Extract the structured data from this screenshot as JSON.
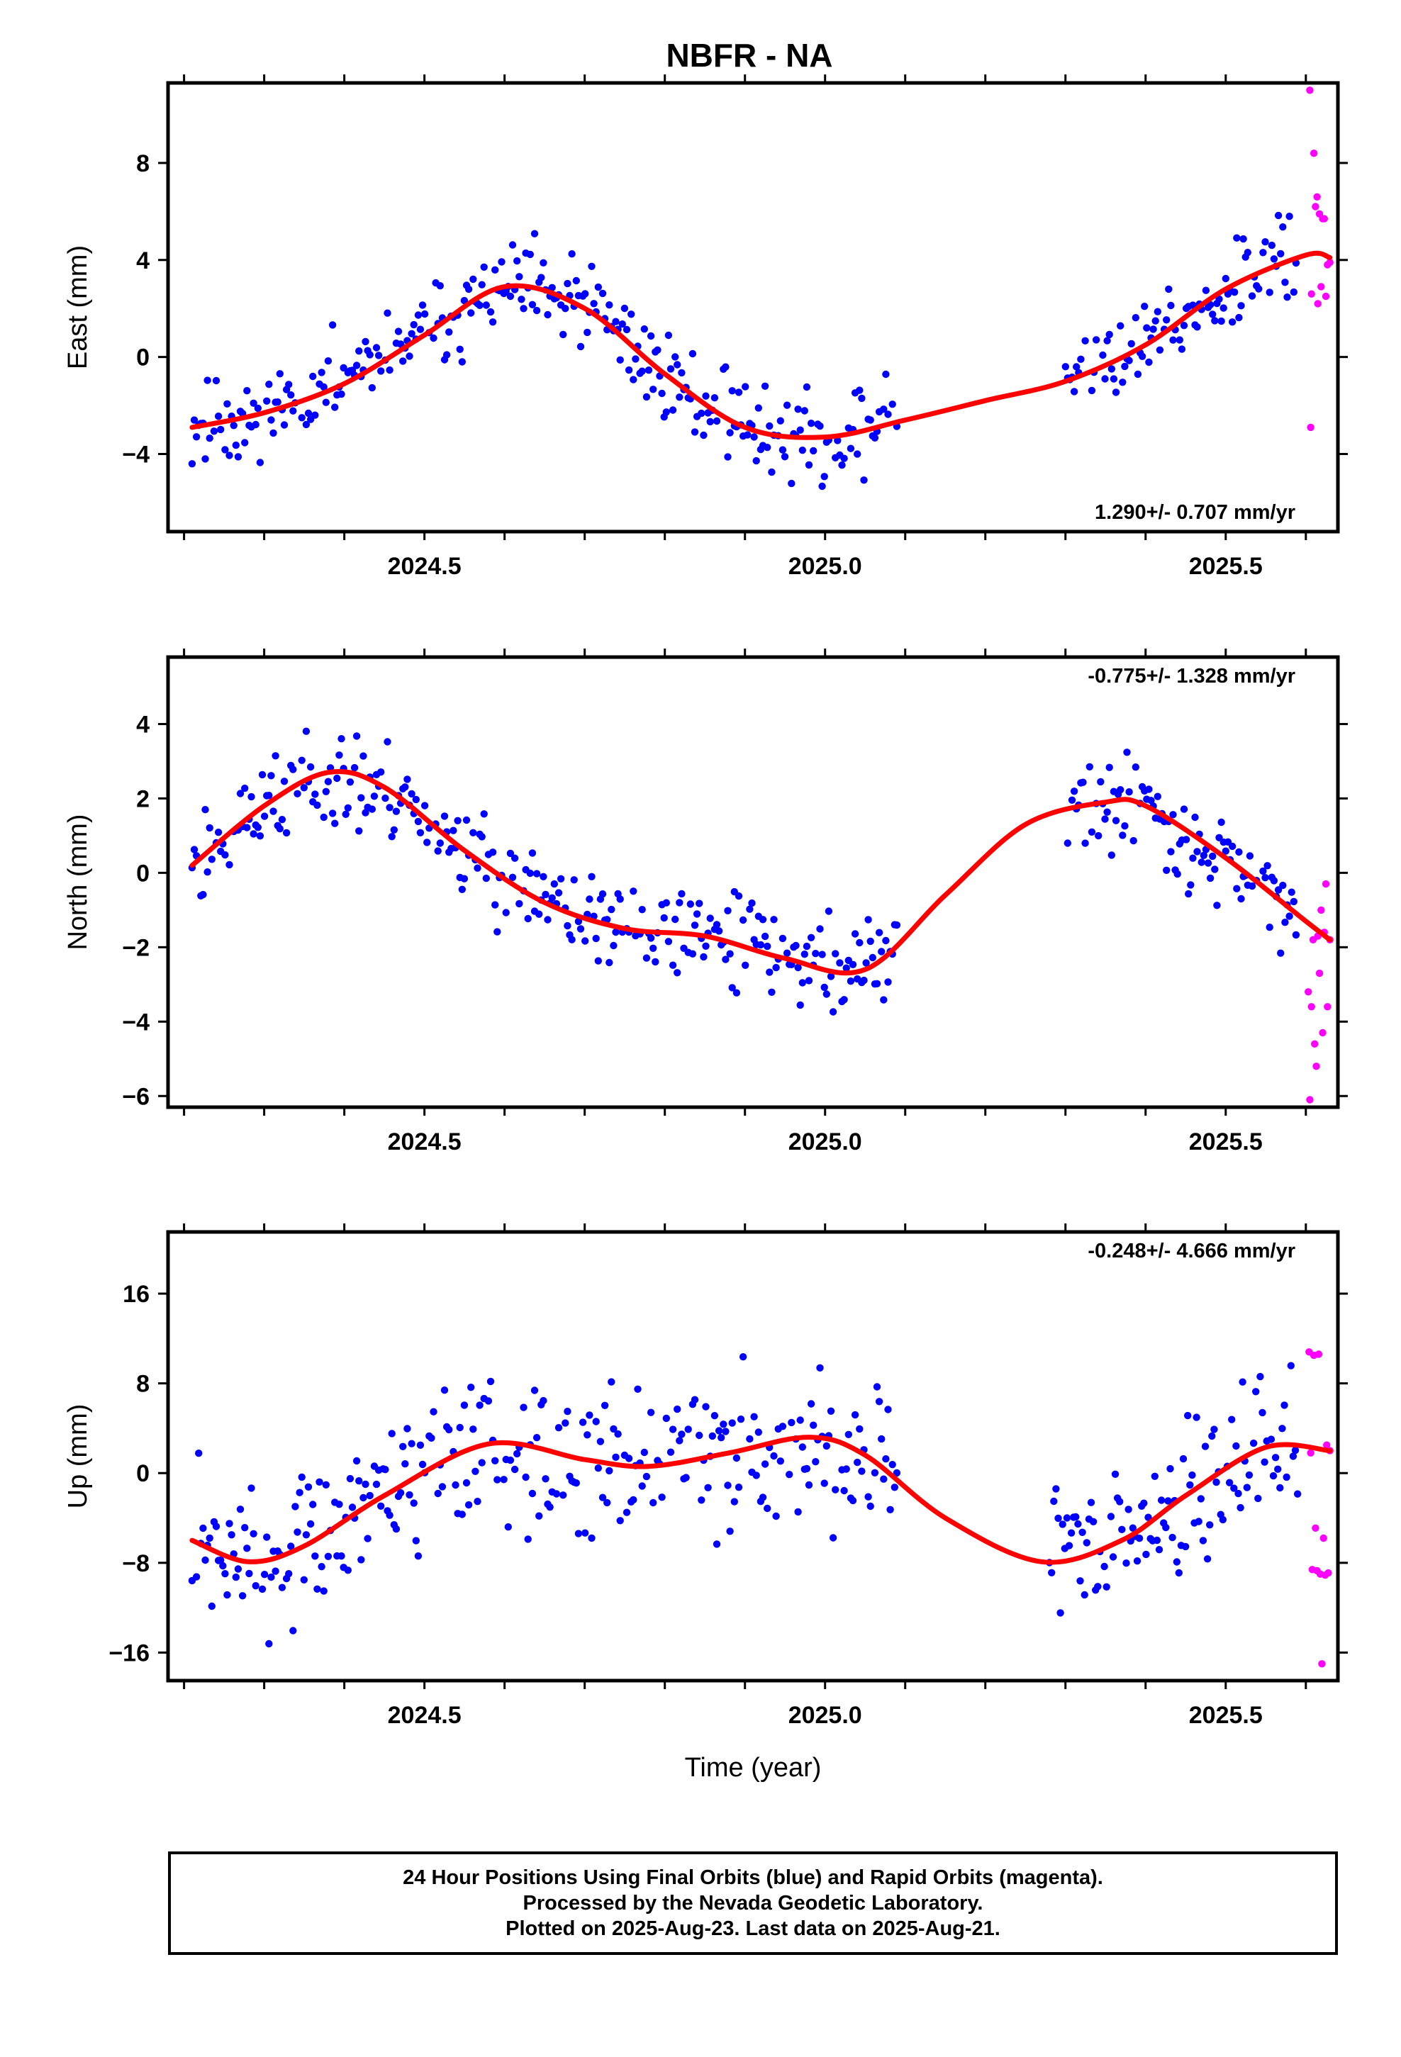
{
  "title": "NBFR - NA",
  "caption": {
    "line1": "24 Hour Positions Using Final Orbits (blue) and Rapid Orbits (magenta).",
    "line2": "Processed by the Nevada Geodetic Laboratory.",
    "line3": "Plotted on 2025-Aug-23. Last data on 2025-Aug-21."
  },
  "colors": {
    "final": "#0000ff",
    "rapid": "#ff00ff",
    "model": "#ff0000"
  },
  "chart_data": [
    {
      "type": "scatter",
      "component": "east",
      "ylabel": "East (mm)",
      "xlabel": "",
      "xlim": [
        2024.18,
        2025.64
      ],
      "ylim": [
        -7.2,
        11.3
      ],
      "xticks": [
        2024.5,
        2025.0,
        2025.5
      ],
      "yticks": [
        -4,
        0,
        4,
        8
      ],
      "rate": "1.290+/- 0.707 mm/yr",
      "rate_position": "bottom-right",
      "model_curve": {
        "x": [
          2024.21,
          2024.3,
          2024.4,
          2024.5,
          2024.6,
          2024.7,
          2024.8,
          2024.9,
          2025.0,
          2025.1,
          2025.2,
          2025.3,
          2025.4,
          2025.5,
          2025.6,
          2025.63
        ],
        "y": [
          -2.9,
          -2.3,
          -1.1,
          0.9,
          2.9,
          2.0,
          -0.7,
          -2.9,
          -3.3,
          -2.6,
          -1.8,
          -1.0,
          0.5,
          2.8,
          4.2,
          4.1
        ]
      },
      "series": [
        {
          "type": "final",
          "seed": 11,
          "x_ranges": [
            [
              2024.21,
              2025.09
            ],
            [
              2025.3,
              2025.59
            ]
          ],
          "noise": 1.3
        },
        {
          "type": "rapid",
          "seed": 5,
          "x": [
            2025.605,
            2025.606,
            2025.607,
            2025.61,
            2025.612,
            2025.614,
            2025.615,
            2025.617,
            2025.619,
            2025.621,
            2025.623,
            2025.625,
            2025.627,
            2025.63
          ],
          "y": [
            11.0,
            -2.9,
            2.6,
            8.4,
            6.2,
            6.6,
            2.2,
            5.9,
            2.9,
            5.7,
            5.7,
            2.5,
            3.8,
            3.9
          ]
        }
      ]
    },
    {
      "type": "scatter",
      "component": "north",
      "ylabel": "North (mm)",
      "xlabel": "",
      "xlim": [
        2024.18,
        2025.64
      ],
      "ylim": [
        -6.3,
        5.8
      ],
      "xticks": [
        2024.5,
        2025.0,
        2025.5
      ],
      "yticks": [
        -6,
        -4,
        -2,
        0,
        2,
        4
      ],
      "rate": "-0.775+/- 1.328 mm/yr",
      "rate_position": "top-right",
      "model_curve": {
        "x": [
          2024.21,
          2024.3,
          2024.38,
          2024.45,
          2024.55,
          2024.65,
          2024.75,
          2024.85,
          2024.95,
          2025.05,
          2025.15,
          2025.25,
          2025.35,
          2025.4,
          2025.5,
          2025.6,
          2025.63
        ],
        "y": [
          0.2,
          1.8,
          2.7,
          2.3,
          0.6,
          -0.8,
          -1.5,
          -1.7,
          -2.3,
          -2.6,
          -0.6,
          1.3,
          1.9,
          1.8,
          0.4,
          -1.3,
          -1.8
        ]
      },
      "series": [
        {
          "type": "final",
          "seed": 23,
          "x_ranges": [
            [
              2024.21,
              2025.09
            ],
            [
              2025.3,
              2025.59
            ]
          ],
          "noise": 0.9
        },
        {
          "type": "rapid",
          "seed": 7,
          "x": [
            2025.603,
            2025.605,
            2025.607,
            2025.609,
            2025.611,
            2025.613,
            2025.615,
            2025.617,
            2025.619,
            2025.621,
            2025.623,
            2025.625,
            2025.627,
            2025.63
          ],
          "y": [
            -3.2,
            -6.1,
            -3.6,
            -1.8,
            -4.6,
            -5.2,
            -1.7,
            -2.7,
            -1.0,
            -4.3,
            -1.6,
            -0.3,
            -3.6,
            -1.8
          ]
        }
      ]
    },
    {
      "type": "scatter",
      "component": "up",
      "ylabel": "Up (mm)",
      "xlabel": "Time (year)",
      "xlim": [
        2024.18,
        2025.64
      ],
      "ylim": [
        -18.5,
        21.5
      ],
      "xticks": [
        2024.5,
        2025.0,
        2025.5
      ],
      "yticks": [
        -16,
        -8,
        0,
        8,
        16
      ],
      "rate": "-0.248+/- 4.666 mm/yr",
      "rate_position": "top-right",
      "model_curve": {
        "x": [
          2024.21,
          2024.28,
          2024.35,
          2024.45,
          2024.58,
          2024.7,
          2024.78,
          2024.88,
          2024.98,
          2025.05,
          2025.15,
          2025.27,
          2025.37,
          2025.45,
          2025.55,
          2025.63
        ],
        "y": [
          -6.0,
          -7.9,
          -6.5,
          -2.0,
          2.6,
          1.2,
          0.6,
          1.8,
          3.2,
          1.6,
          -4.0,
          -7.9,
          -6.0,
          -2.0,
          2.3,
          2.0
        ]
      },
      "series": [
        {
          "type": "final",
          "seed": 31,
          "x_ranges": [
            [
              2024.21,
              2025.09
            ],
            [
              2025.28,
              2025.59
            ]
          ],
          "noise": 4.5
        },
        {
          "type": "rapid",
          "seed": 9,
          "x": [
            2025.604,
            2025.606,
            2025.608,
            2025.61,
            2025.612,
            2025.614,
            2025.616,
            2025.618,
            2025.62,
            2025.622,
            2025.624,
            2025.626,
            2025.628,
            2025.63
          ],
          "y": [
            10.8,
            1.8,
            -8.6,
            10.5,
            -4.9,
            -8.7,
            10.6,
            -9.0,
            -17.0,
            -5.8,
            -9.1,
            2.5,
            -8.9,
            2.0
          ]
        }
      ]
    }
  ]
}
